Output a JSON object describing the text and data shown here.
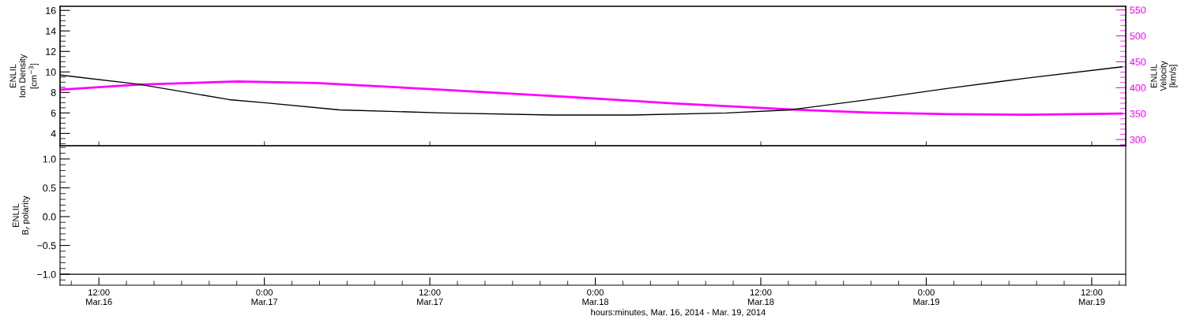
{
  "chart_data": [
    {
      "type": "line",
      "ylabel": "ENLIL\nIon Density\n[cm$^{−3}$]",
      "y2label": "ENLIL\nVelocity\n[km/s]",
      "tick_labels": "y",
      "xlim": [
        "2014-03-16T09:11",
        "2014-03-19T14:28"
      ],
      "xticks": [
        {
          "value": "2014-03-16T12:00",
          "label": null
        },
        {
          "value": "2014-03-17T00:00",
          "label": null
        },
        {
          "value": "2014-03-17T12:00",
          "label": null
        },
        {
          "value": "2014-03-18T00:00",
          "label": null
        },
        {
          "value": "2014-03-18T12:00",
          "label": null
        },
        {
          "value": "2014-03-19T00:00",
          "label": null
        },
        {
          "value": "2014-03-19T12:00",
          "label": null
        }
      ],
      "ylim": [
        2.8,
        16.4
      ],
      "yticks": [
        {
          "value": 3,
          "label": null
        },
        {
          "value": 3.5,
          "label": null
        },
        4,
        {
          "value": 4.5,
          "label": null
        },
        {
          "value": 5,
          "label": null
        },
        {
          "value": 5.5,
          "label": null
        },
        6,
        {
          "value": 6.5,
          "label": null
        },
        {
          "value": 7,
          "label": null
        },
        {
          "value": 7.5,
          "label": null
        },
        8,
        {
          "value": 8.5,
          "label": null
        },
        {
          "value": 9,
          "label": null
        },
        {
          "value": 9.5,
          "label": null
        },
        10,
        {
          "value": 10.5,
          "label": null
        },
        {
          "value": 11,
          "label": null
        },
        {
          "value": 11.5,
          "label": null
        },
        12,
        {
          "value": 12.5,
          "label": null
        },
        {
          "value": 13,
          "label": null
        },
        {
          "value": 13.5,
          "label": null
        },
        14,
        {
          "value": 14.5,
          "label": null
        },
        {
          "value": 15,
          "label": null
        },
        {
          "value": 15.5,
          "label": null
        },
        16
      ],
      "y2lim": [
        288,
        557
      ],
      "y2ticks": [
        {
          "value": 290,
          "label": null
        },
        300,
        {
          "value": 310,
          "label": null
        },
        {
          "value": 320,
          "label": null
        },
        {
          "value": 330,
          "label": null
        },
        {
          "value": 340,
          "label": null
        },
        350,
        {
          "value": 360,
          "label": null
        },
        {
          "value": 370,
          "label": null
        },
        {
          "value": 380,
          "label": null
        },
        {
          "value": 390,
          "label": null
        },
        400,
        {
          "value": 410,
          "label": null
        },
        {
          "value": 420,
          "label": null
        },
        {
          "value": 430,
          "label": null
        },
        {
          "value": 440,
          "label": null
        },
        450,
        {
          "value": 460,
          "label": null
        },
        {
          "value": 470,
          "label": null
        },
        {
          "value": 480,
          "label": null
        },
        {
          "value": 490,
          "label": null
        },
        500,
        {
          "value": 510,
          "label": null
        },
        {
          "value": 520,
          "label": null
        },
        {
          "value": 530,
          "label": null
        },
        {
          "value": 540,
          "label": null
        },
        550
      ],
      "series": [
        {
          "color": "#000000",
          "x": [
            "2014-03-16T09:11",
            "2014-03-16T14:52",
            "2014-03-16T21:27",
            "2014-03-17T00:00",
            "2014-03-17T05:28",
            "2014-03-17T12:55",
            "2014-03-17T20:56",
            "2014-03-18T02:40",
            "2014-03-18T09:32",
            "2014-03-18T14:07",
            "2014-03-18T19:51",
            "2014-03-19T01:35",
            "2014-03-19T07:18",
            "2014-03-19T14:11"
          ],
          "values": [
            9.7,
            8.8,
            7.3,
            7.0,
            6.3,
            6.0,
            5.8,
            5.8,
            6.0,
            6.3,
            7.3,
            8.4,
            9.4,
            10.5
          ]
        },
        {
          "color": "#ff00ff",
          "axis": "y2",
          "x": [
            "2014-03-16T09:11",
            "2014-03-16T14:52",
            "2014-03-16T22:01",
            "2014-03-17T03:45",
            "2014-03-17T12:20",
            "2014-03-17T20:56",
            "2014-03-18T05:32",
            "2014-03-18T14:07",
            "2014-03-18T19:51",
            "2014-03-19T01:35",
            "2014-03-19T07:18",
            "2014-03-19T14:11"
          ],
          "values": [
            396,
            406,
            412,
            409,
            397,
            384,
            370,
            358,
            352,
            349,
            348,
            350
          ]
        }
      ]
    },
    {
      "type": "line",
      "ylabel": "ENLIL\nB$_{r}$ polarity",
      "xlabel": "hours:minutes, Mar. 16, 2014 - Mar. 19, 2014",
      "xlim": [
        "2014-03-16T09:11",
        "2014-03-19T14:28"
      ],
      "xticks": [
        {
          "value": "2014-03-16T10:00",
          "label": null
        },
        {
          "value": "2014-03-16T12:00",
          "label": "12:00\nMar.16"
        },
        {
          "value": "2014-03-16T14:00",
          "label": null
        },
        {
          "value": "2014-03-16T16:00",
          "label": null
        },
        {
          "value": "2014-03-16T18:00",
          "label": null
        },
        {
          "value": "2014-03-16T20:00",
          "label": null
        },
        {
          "value": "2014-03-16T22:00",
          "label": null
        },
        {
          "value": "2014-03-17T00:00",
          "label": "0:00\nMar.17"
        },
        {
          "value": "2014-03-17T02:00",
          "label": null
        },
        {
          "value": "2014-03-17T04:00",
          "label": null
        },
        {
          "value": "2014-03-17T06:00",
          "label": null
        },
        {
          "value": "2014-03-17T08:00",
          "label": null
        },
        {
          "value": "2014-03-17T10:00",
          "label": null
        },
        {
          "value": "2014-03-17T12:00",
          "label": "12:00\nMar.17"
        },
        {
          "value": "2014-03-17T14:00",
          "label": null
        },
        {
          "value": "2014-03-17T16:00",
          "label": null
        },
        {
          "value": "2014-03-17T18:00",
          "label": null
        },
        {
          "value": "2014-03-17T20:00",
          "label": null
        },
        {
          "value": "2014-03-17T22:00",
          "label": null
        },
        {
          "value": "2014-03-18T00:00",
          "label": "0:00\nMar.18"
        },
        {
          "value": "2014-03-18T02:00",
          "label": null
        },
        {
          "value": "2014-03-18T04:00",
          "label": null
        },
        {
          "value": "2014-03-18T06:00",
          "label": null
        },
        {
          "value": "2014-03-18T08:00",
          "label": null
        },
        {
          "value": "2014-03-18T10:00",
          "label": null
        },
        {
          "value": "2014-03-18T12:00",
          "label": "12:00\nMar.18"
        },
        {
          "value": "2014-03-18T14:00",
          "label": null
        },
        {
          "value": "2014-03-18T16:00",
          "label": null
        },
        {
          "value": "2014-03-18T18:00",
          "label": null
        },
        {
          "value": "2014-03-18T20:00",
          "label": null
        },
        {
          "value": "2014-03-18T22:00",
          "label": null
        },
        {
          "value": "2014-03-19T00:00",
          "label": "0:00\nMar.19"
        },
        {
          "value": "2014-03-19T02:00",
          "label": null
        },
        {
          "value": "2014-03-19T04:00",
          "label": null
        },
        {
          "value": "2014-03-19T06:00",
          "label": null
        },
        {
          "value": "2014-03-19T08:00",
          "label": null
        },
        {
          "value": "2014-03-19T10:00",
          "label": null
        },
        {
          "value": "2014-03-19T12:00",
          "label": "12:00\nMar.19"
        },
        {
          "value": "2014-03-19T14:00",
          "label": null
        }
      ],
      "ylim": [
        -1.19,
        1.23
      ],
      "yticks": [
        {
          "value": -1.1,
          "label": null
        },
        {
          "value": -1,
          "label": "−1.0"
        },
        {
          "value": -0.9,
          "label": null
        },
        {
          "value": -0.8,
          "label": null
        },
        {
          "value": -0.7,
          "label": null
        },
        {
          "value": -0.6,
          "label": null
        },
        {
          "value": -0.5,
          "label": "−0.5"
        },
        {
          "value": -0.4,
          "label": null
        },
        {
          "value": -0.3,
          "label": null
        },
        {
          "value": -0.2,
          "label": null
        },
        {
          "value": -0.1,
          "label": null
        },
        {
          "value": 0,
          "label": "0.0"
        },
        {
          "value": 0.1,
          "label": null
        },
        {
          "value": 0.2,
          "label": null
        },
        {
          "value": 0.3,
          "label": null
        },
        {
          "value": 0.4,
          "label": null
        },
        {
          "value": 0.5,
          "label": "0.5"
        },
        {
          "value": 0.6,
          "label": null
        },
        {
          "value": 0.7,
          "label": null
        },
        {
          "value": 0.8,
          "label": null
        },
        {
          "value": 0.9,
          "label": null
        },
        {
          "value": 1,
          "label": "1.0"
        },
        {
          "value": 1.1,
          "label": null
        },
        {
          "value": 1.2,
          "label": null
        }
      ],
      "series": [
        {
          "color": "#000000",
          "x": [
            "2014-03-16T09:11",
            "2014-03-19T14:28"
          ],
          "values": [
            -1,
            -1
          ]
        }
      ]
    }
  ]
}
